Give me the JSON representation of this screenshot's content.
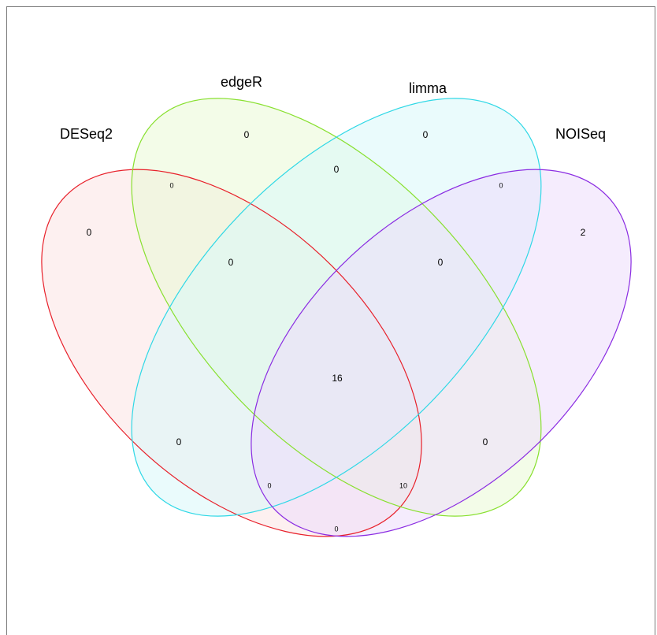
{
  "chart_data": {
    "type": "venn",
    "sets": [
      {
        "name": "DESeq2",
        "color": "#e8202a",
        "fill": "#fbe3e3"
      },
      {
        "name": "edgeR",
        "color": "#88e02f",
        "fill": "#eaf9d6"
      },
      {
        "name": "limma",
        "color": "#2fd8e6",
        "fill": "#d8f7fa"
      },
      {
        "name": "NOISeq",
        "color": "#8a2be2",
        "fill": "#eddcfb"
      }
    ],
    "regions": {
      "DESeq2_only": "0",
      "edgeR_only": "0",
      "limma_only": "0",
      "NOISeq_only": "2",
      "DESeq2_edgeR": "0",
      "edgeR_limma": "0",
      "limma_NOISeq": "0",
      "DESeq2_limma": "0",
      "edgeR_NOISeq": "0",
      "DESeq2_NOISeq": "0",
      "DESeq2_edgeR_limma": "0",
      "edgeR_limma_NOISeq": "0",
      "DESeq2_edgeR_NOISeq": "0",
      "DESeq2_limma_NOISeq": "10",
      "all_four": "16"
    }
  }
}
